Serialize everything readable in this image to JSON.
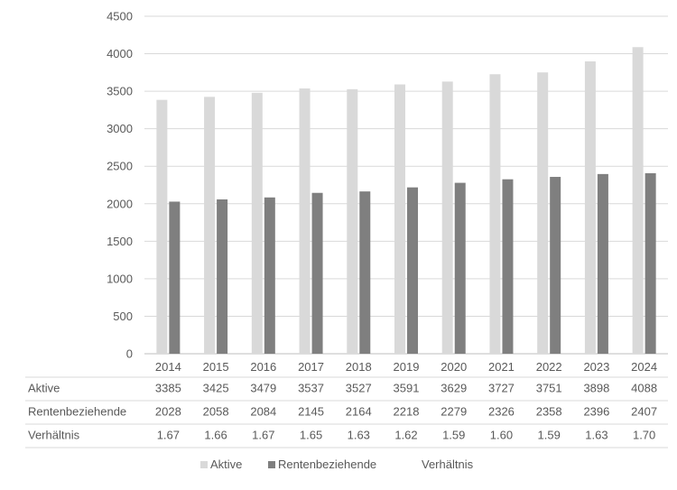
{
  "chart_data": {
    "type": "bar",
    "categories": [
      "2014",
      "2015",
      "2016",
      "2017",
      "2018",
      "2019",
      "2020",
      "2021",
      "2022",
      "2023",
      "2024"
    ],
    "series": [
      {
        "name": "Aktive",
        "color": "#d9d9d9",
        "values": [
          3385,
          3425,
          3479,
          3537,
          3527,
          3591,
          3629,
          3727,
          3751,
          3898,
          4088
        ],
        "labels": [
          "3385",
          "3425",
          "3479",
          "3537",
          "3527",
          "3591",
          "3629",
          "3727",
          "3751",
          "3898",
          "4088"
        ]
      },
      {
        "name": "Rentenbeziehende",
        "color": "#7f7f7f",
        "values": [
          2028,
          2058,
          2084,
          2145,
          2164,
          2218,
          2279,
          2326,
          2358,
          2396,
          2407
        ],
        "labels": [
          "2028",
          "2058",
          "2084",
          "2145",
          "2164",
          "2218",
          "2279",
          "2326",
          "2358",
          "2396",
          "2407"
        ]
      },
      {
        "name": "Verhältnis",
        "color": null,
        "values": [
          1.67,
          1.66,
          1.67,
          1.65,
          1.63,
          1.62,
          1.59,
          1.6,
          1.59,
          1.63,
          1.7
        ],
        "labels": [
          "1.67",
          "1.66",
          "1.67",
          "1.65",
          "1.63",
          "1.62",
          "1.59",
          "1.60",
          "1.59",
          "1.63",
          "1.70"
        ]
      }
    ],
    "ylim": [
      0,
      4500
    ],
    "yticks": [
      0,
      500,
      1000,
      1500,
      2000,
      2500,
      3000,
      3500,
      4000,
      4500
    ],
    "grid": true,
    "data_table": true,
    "legend_position": "bottom"
  }
}
